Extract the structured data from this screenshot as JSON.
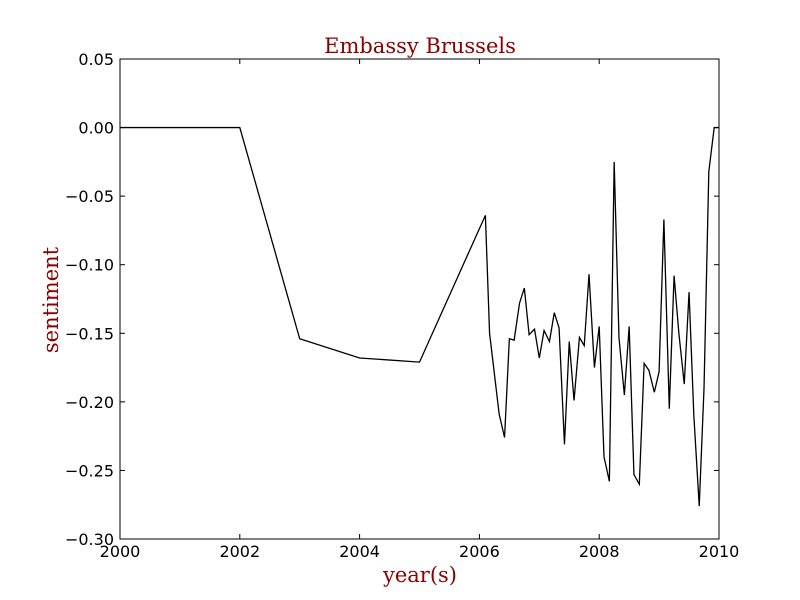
{
  "chart_data": {
    "type": "line",
    "title": "Embassy Brussels",
    "xlabel": "year(s)",
    "ylabel": "sentiment",
    "xlim": [
      2000,
      2010
    ],
    "ylim": [
      -0.3,
      0.05
    ],
    "x_ticks": [
      2000,
      2002,
      2004,
      2006,
      2008,
      2010
    ],
    "x_tick_labels": [
      "2000",
      "2002",
      "2004",
      "2006",
      "2008",
      "2010"
    ],
    "y_ticks": [
      0.05,
      0.0,
      -0.05,
      -0.1,
      -0.15,
      -0.2,
      -0.25,
      -0.3
    ],
    "y_tick_labels": [
      "0.05",
      "0.00",
      "−0.05",
      "−0.10",
      "−0.15",
      "−0.20",
      "−0.25",
      "−0.30"
    ],
    "grid": false,
    "colors": {
      "title": "#8b0000",
      "axis_labels": "#8b0000",
      "line": "#000000"
    },
    "series": [
      {
        "x": [
          2000.0,
          2002.0,
          2003.0,
          2004.0,
          2005.0,
          2006.1,
          2006.17,
          2006.33,
          2006.42,
          2006.5,
          2006.58,
          2006.67,
          2006.75,
          2006.83,
          2006.92,
          2007.0,
          2007.08,
          2007.17,
          2007.25,
          2007.33,
          2007.42,
          2007.5,
          2007.58,
          2007.67,
          2007.75,
          2007.83,
          2007.92,
          2008.0,
          2008.08,
          2008.17,
          2008.25,
          2008.33,
          2008.42,
          2008.5,
          2008.58,
          2008.67,
          2008.75,
          2008.83,
          2008.92,
          2009.0,
          2009.08,
          2009.17,
          2009.25,
          2009.33,
          2009.42,
          2009.5,
          2009.58,
          2009.67,
          2009.75,
          2009.83,
          2009.92,
          2010.0
        ],
        "y": [
          0.0,
          0.0,
          -0.154,
          -0.168,
          -0.171,
          -0.064,
          -0.15,
          -0.209,
          -0.226,
          -0.154,
          -0.155,
          -0.128,
          -0.117,
          -0.151,
          -0.147,
          -0.168,
          -0.148,
          -0.156,
          -0.135,
          -0.146,
          -0.231,
          -0.156,
          -0.199,
          -0.153,
          -0.159,
          -0.107,
          -0.175,
          -0.145,
          -0.24,
          -0.258,
          -0.025,
          -0.153,
          -0.195,
          -0.145,
          -0.253,
          -0.26,
          -0.172,
          -0.177,
          -0.193,
          -0.178,
          -0.067,
          -0.205,
          -0.108,
          -0.15,
          -0.187,
          -0.12,
          -0.21,
          -0.276,
          -0.19,
          -0.032,
          0.0,
          0.0
        ]
      }
    ]
  }
}
